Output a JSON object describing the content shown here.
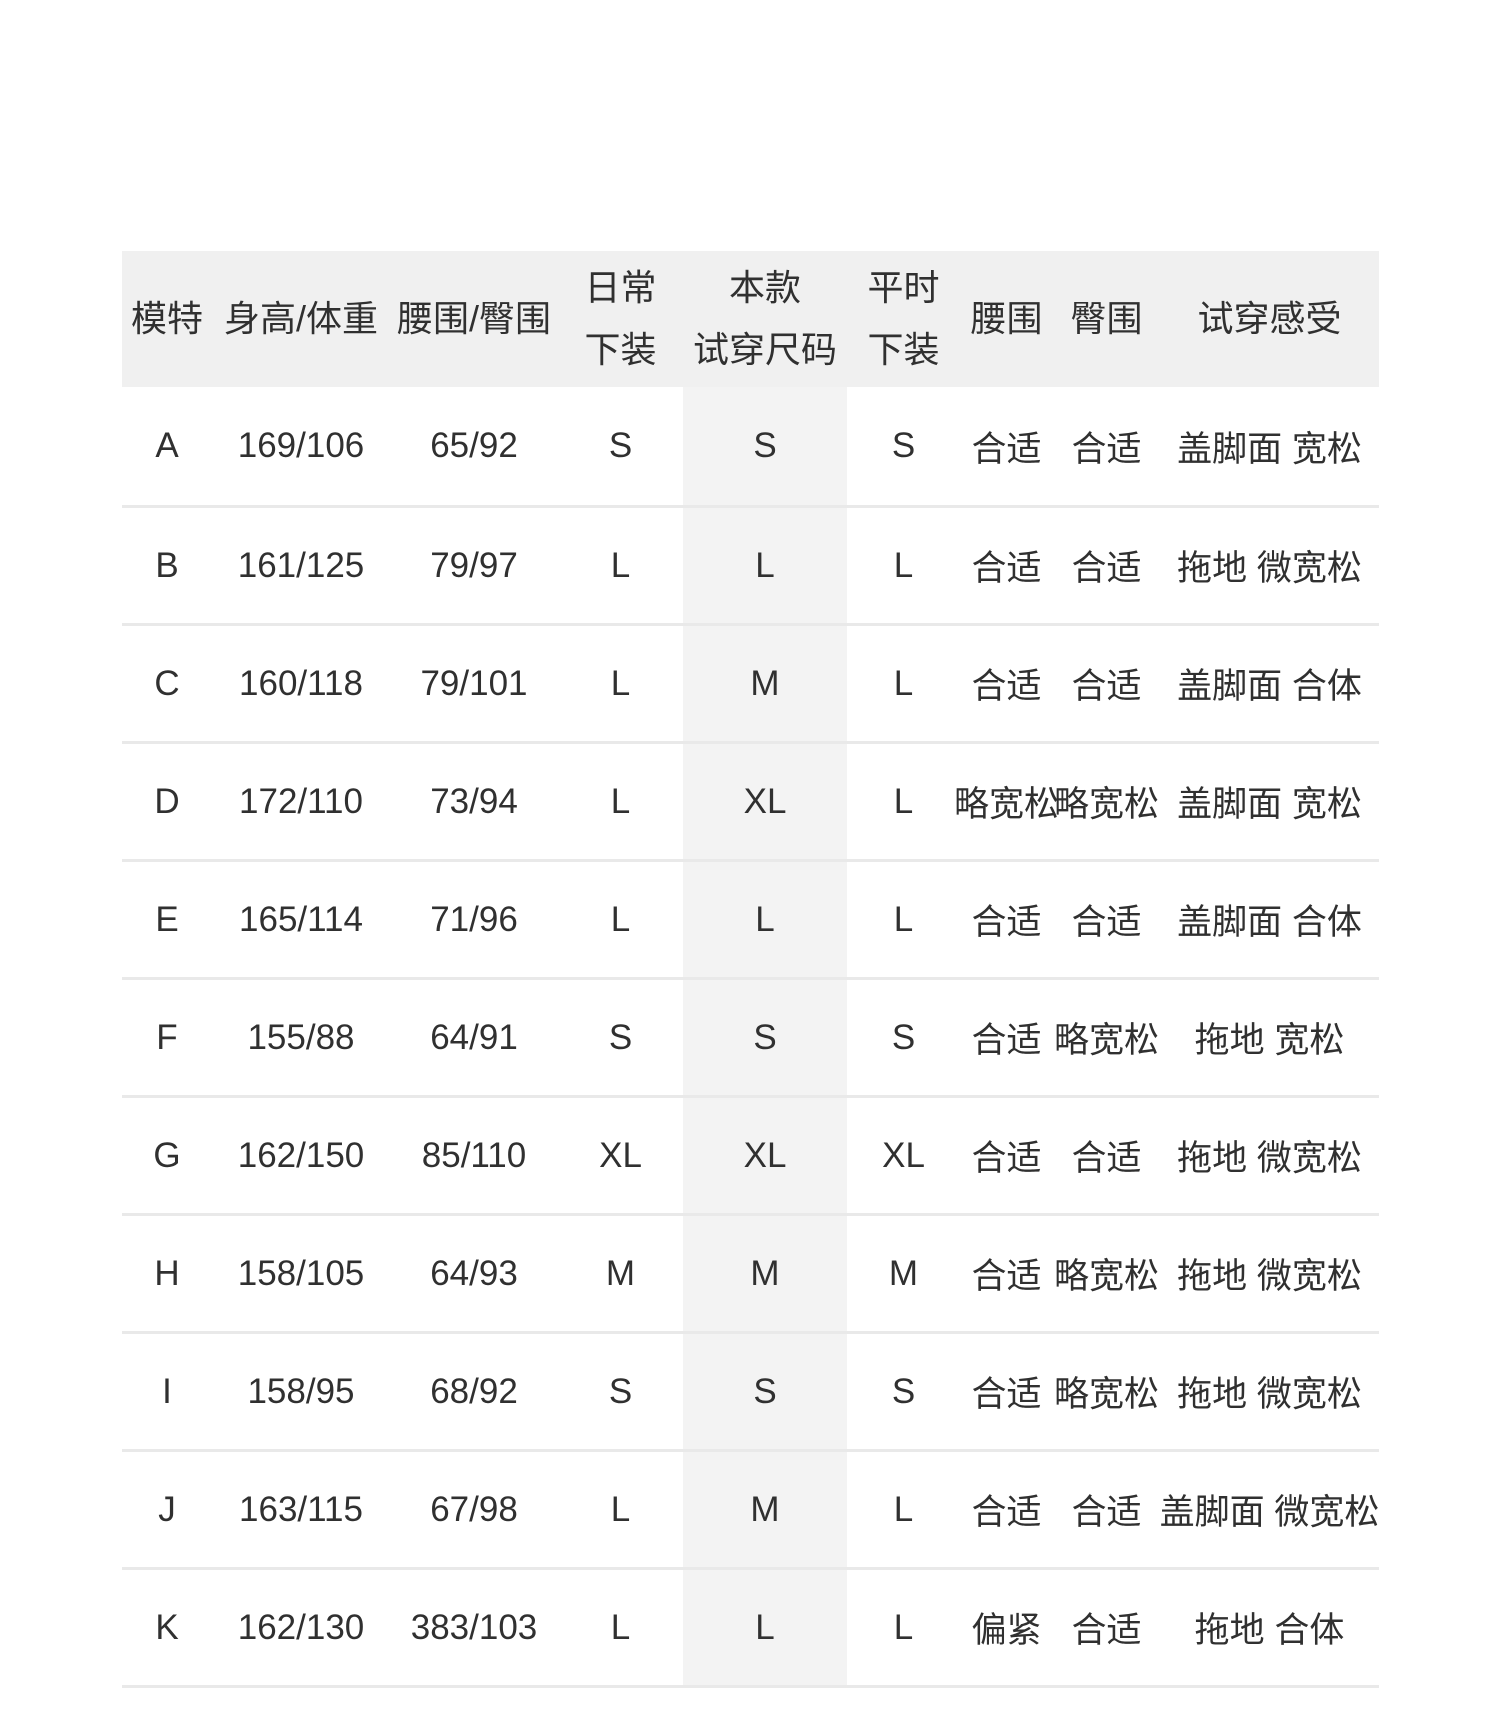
{
  "colors": {
    "header_background": "#f0f0f0",
    "tried_size_column_background": "#f3f3f3",
    "row_divider": "#e9e9e9",
    "text": "#303030",
    "page_background": "#ffffff"
  },
  "table": {
    "columns": [
      {
        "label": "模特"
      },
      {
        "label": "身高/体重"
      },
      {
        "label": "腰围/臀围"
      },
      {
        "line1": "日常",
        "line2": "下装"
      },
      {
        "line1": "本款",
        "line2": "试穿尺码"
      },
      {
        "line1": "平时",
        "line2": "下装"
      },
      {
        "label": "腰围"
      },
      {
        "label": "臀围"
      },
      {
        "label": "试穿感受"
      }
    ],
    "rows": [
      [
        "A",
        "169/106",
        "65/92",
        "S",
        "S",
        "S",
        "合适",
        "合适",
        "盖脚面 宽松"
      ],
      [
        "B",
        "161/125",
        "79/97",
        "L",
        "L",
        "L",
        "合适",
        "合适",
        "拖地 微宽松"
      ],
      [
        "C",
        "160/118",
        "79/101",
        "L",
        "M",
        "L",
        "合适",
        "合适",
        "盖脚面 合体"
      ],
      [
        "D",
        "172/110",
        "73/94",
        "L",
        "XL",
        "L",
        "略宽松",
        "略宽松",
        "盖脚面 宽松"
      ],
      [
        "E",
        "165/114",
        "71/96",
        "L",
        "L",
        "L",
        "合适",
        "合适",
        "盖脚面 合体"
      ],
      [
        "F",
        "155/88",
        "64/91",
        "S",
        "S",
        "S",
        "合适",
        "略宽松",
        "拖地 宽松"
      ],
      [
        "G",
        "162/150",
        "85/110",
        "XL",
        "XL",
        "XL",
        "合适",
        "合适",
        "拖地 微宽松"
      ],
      [
        "H",
        "158/105",
        "64/93",
        "M",
        "M",
        "M",
        "合适",
        "略宽松",
        "拖地 微宽松"
      ],
      [
        "I",
        "158/95",
        "68/92",
        "S",
        "S",
        "S",
        "合适",
        "略宽松",
        "拖地 微宽松"
      ],
      [
        "J",
        "163/115",
        "67/98",
        "L",
        "M",
        "L",
        "合适",
        "合适",
        "盖脚面 微宽松"
      ],
      [
        "K",
        "162/130",
        "383/103",
        "L",
        "L",
        "L",
        "偏紧",
        "合适",
        "拖地 合体"
      ]
    ]
  }
}
